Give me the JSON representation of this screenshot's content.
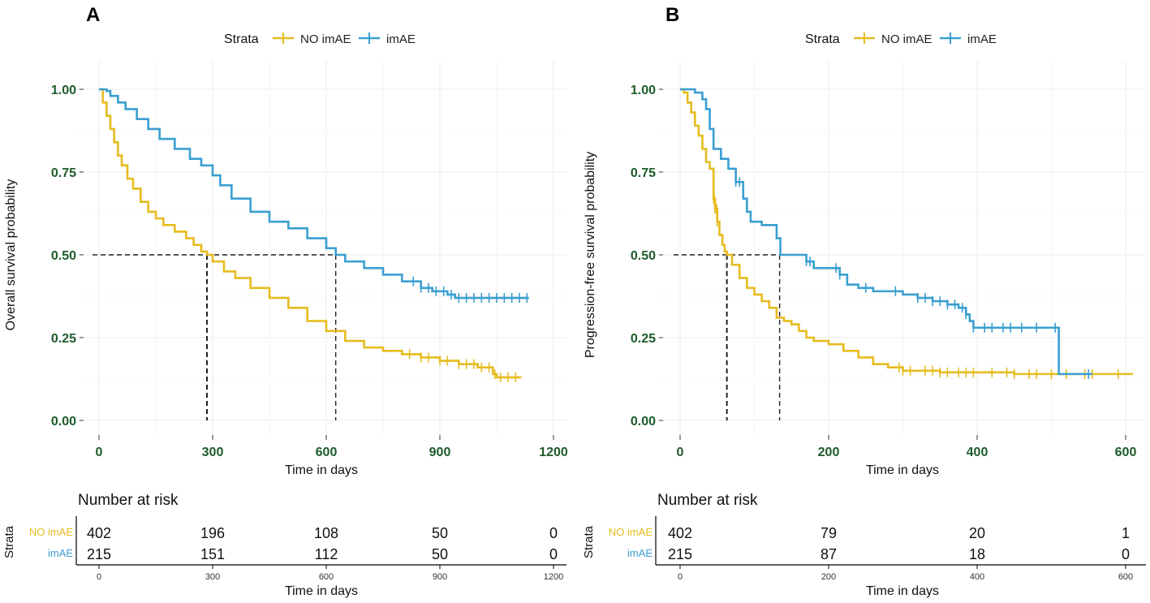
{
  "colors": {
    "no_imae": "#e6bc1f",
    "imae": "#3a9fd0",
    "tick_text": "#1d5b2a"
  },
  "chart_data": [
    {
      "id": "A",
      "type": "line",
      "panel_label": "A",
      "legend": {
        "title": "Strata",
        "entries": [
          "NO imAE",
          "imAE"
        ]
      },
      "ylabel": "Overall survival probability",
      "xlabel": "Time in days",
      "xlim": [
        0,
        1200
      ],
      "ylim": [
        0,
        1
      ],
      "x_ticks": [
        "0",
        "300",
        "600",
        "900",
        "1200"
      ],
      "y_ticks": [
        "0.00",
        "0.25",
        "0.50",
        "0.75",
        "1.00"
      ],
      "median_lines": [
        285,
        625
      ],
      "series": [
        {
          "name": "NO imAE",
          "points": [
            [
              0,
              1.0
            ],
            [
              10,
              0.96
            ],
            [
              20,
              0.92
            ],
            [
              30,
              0.88
            ],
            [
              40,
              0.84
            ],
            [
              50,
              0.8
            ],
            [
              60,
              0.77
            ],
            [
              75,
              0.73
            ],
            [
              90,
              0.7
            ],
            [
              110,
              0.66
            ],
            [
              130,
              0.63
            ],
            [
              150,
              0.61
            ],
            [
              170,
              0.59
            ],
            [
              200,
              0.57
            ],
            [
              230,
              0.55
            ],
            [
              250,
              0.53
            ],
            [
              270,
              0.51
            ],
            [
              285,
              0.5
            ],
            [
              300,
              0.48
            ],
            [
              330,
              0.45
            ],
            [
              360,
              0.43
            ],
            [
              400,
              0.4
            ],
            [
              450,
              0.37
            ],
            [
              500,
              0.34
            ],
            [
              550,
              0.3
            ],
            [
              600,
              0.27
            ],
            [
              650,
              0.24
            ],
            [
              700,
              0.22
            ],
            [
              750,
              0.21
            ],
            [
              800,
              0.2
            ],
            [
              850,
              0.19
            ],
            [
              900,
              0.18
            ],
            [
              950,
              0.17
            ],
            [
              1000,
              0.16
            ],
            [
              1040,
              0.14
            ],
            [
              1050,
              0.13
            ],
            [
              1115,
              0.13
            ]
          ],
          "censors": [
            820,
            850,
            870,
            900,
            920,
            950,
            970,
            990,
            1010,
            1030,
            1045,
            1060,
            1080,
            1100
          ]
        },
        {
          "name": "imAE",
          "points": [
            [
              0,
              1.0
            ],
            [
              20,
              0.995
            ],
            [
              30,
              0.98
            ],
            [
              50,
              0.96
            ],
            [
              70,
              0.94
            ],
            [
              100,
              0.91
            ],
            [
              130,
              0.88
            ],
            [
              160,
              0.85
            ],
            [
              200,
              0.82
            ],
            [
              240,
              0.79
            ],
            [
              270,
              0.77
            ],
            [
              300,
              0.74
            ],
            [
              320,
              0.71
            ],
            [
              350,
              0.67
            ],
            [
              400,
              0.63
            ],
            [
              450,
              0.6
            ],
            [
              500,
              0.58
            ],
            [
              550,
              0.55
            ],
            [
              600,
              0.52
            ],
            [
              625,
              0.5
            ],
            [
              650,
              0.48
            ],
            [
              700,
              0.46
            ],
            [
              750,
              0.44
            ],
            [
              800,
              0.42
            ],
            [
              850,
              0.4
            ],
            [
              880,
              0.39
            ],
            [
              900,
              0.39
            ],
            [
              920,
              0.38
            ],
            [
              940,
              0.37
            ],
            [
              1000,
              0.37
            ],
            [
              1135,
              0.37
            ]
          ],
          "censors": [
            830,
            850,
            870,
            890,
            910,
            930,
            950,
            970,
            990,
            1010,
            1030,
            1050,
            1070,
            1090,
            1110,
            1130
          ]
        }
      ],
      "risk_table": {
        "title": "Number at risk",
        "ytitle": "Strata",
        "xlabel": "Time in days",
        "x_ticks": [
          "0",
          "300",
          "600",
          "900",
          "1200"
        ],
        "rows": [
          {
            "strata": "NO imAE",
            "values": [
              "402",
              "196",
              "108",
              "50",
              "0"
            ]
          },
          {
            "strata": "imAE",
            "values": [
              "215",
              "151",
              "112",
              "50",
              "0"
            ]
          }
        ]
      }
    },
    {
      "id": "B",
      "type": "line",
      "panel_label": "B",
      "legend": {
        "title": "Strata",
        "entries": [
          "NO imAE",
          "imAE"
        ]
      },
      "ylabel": "Progression-free survival probability",
      "xlabel": "Time in days",
      "xlim": [
        0,
        600
      ],
      "ylim": [
        0,
        1
      ],
      "x_ticks": [
        "0",
        "200",
        "400",
        "600"
      ],
      "y_ticks": [
        "0.00",
        "0.25",
        "0.50",
        "0.75",
        "1.00"
      ],
      "median_lines": [
        63,
        134
      ],
      "series": [
        {
          "name": "NO imAE",
          "points": [
            [
              0,
              1.0
            ],
            [
              5,
              0.99
            ],
            [
              10,
              0.96
            ],
            [
              15,
              0.93
            ],
            [
              20,
              0.89
            ],
            [
              25,
              0.86
            ],
            [
              30,
              0.82
            ],
            [
              35,
              0.78
            ],
            [
              40,
              0.76
            ],
            [
              45,
              0.67
            ],
            [
              47,
              0.64
            ],
            [
              50,
              0.6
            ],
            [
              53,
              0.56
            ],
            [
              57,
              0.53
            ],
            [
              60,
              0.51
            ],
            [
              63,
              0.5
            ],
            [
              70,
              0.47
            ],
            [
              80,
              0.43
            ],
            [
              90,
              0.4
            ],
            [
              100,
              0.38
            ],
            [
              110,
              0.36
            ],
            [
              120,
              0.34
            ],
            [
              130,
              0.31
            ],
            [
              140,
              0.3
            ],
            [
              150,
              0.29
            ],
            [
              160,
              0.27
            ],
            [
              170,
              0.25
            ],
            [
              180,
              0.24
            ],
            [
              200,
              0.23
            ],
            [
              220,
              0.21
            ],
            [
              240,
              0.19
            ],
            [
              260,
              0.17
            ],
            [
              280,
              0.16
            ],
            [
              300,
              0.15
            ],
            [
              350,
              0.145
            ],
            [
              400,
              0.145
            ],
            [
              450,
              0.14
            ],
            [
              610,
              0.14
            ]
          ],
          "censors": [
            45,
            46,
            47,
            48,
            49,
            50,
            295,
            300,
            310,
            330,
            340,
            350,
            360,
            375,
            385,
            395,
            420,
            440,
            450,
            470,
            480,
            500,
            520,
            545,
            555,
            590
          ]
        },
        {
          "name": "imAE",
          "points": [
            [
              0,
              1.0
            ],
            [
              10,
              1.0
            ],
            [
              20,
              0.99
            ],
            [
              30,
              0.97
            ],
            [
              35,
              0.94
            ],
            [
              40,
              0.88
            ],
            [
              45,
              0.82
            ],
            [
              55,
              0.79
            ],
            [
              65,
              0.76
            ],
            [
              75,
              0.72
            ],
            [
              85,
              0.67
            ],
            [
              90,
              0.63
            ],
            [
              95,
              0.6
            ],
            [
              105,
              0.6
            ],
            [
              110,
              0.59
            ],
            [
              125,
              0.59
            ],
            [
              130,
              0.55
            ],
            [
              135,
              0.5
            ],
            [
              160,
              0.5
            ],
            [
              170,
              0.48
            ],
            [
              180,
              0.46
            ],
            [
              210,
              0.46
            ],
            [
              215,
              0.44
            ],
            [
              225,
              0.41
            ],
            [
              240,
              0.4
            ],
            [
              260,
              0.39
            ],
            [
              280,
              0.39
            ],
            [
              300,
              0.38
            ],
            [
              320,
              0.37
            ],
            [
              340,
              0.36
            ],
            [
              360,
              0.35
            ],
            [
              375,
              0.34
            ],
            [
              385,
              0.32
            ],
            [
              390,
              0.3
            ],
            [
              395,
              0.28
            ],
            [
              440,
              0.28
            ],
            [
              510,
              0.28
            ],
            [
              510,
              0.14
            ],
            [
              555,
              0.14
            ]
          ],
          "censors": [
            75,
            80,
            170,
            175,
            210,
            215,
            250,
            290,
            320,
            330,
            340,
            350,
            360,
            370,
            380,
            385,
            395,
            410,
            420,
            435,
            445,
            460,
            480,
            505,
            550
          ]
        }
      ],
      "risk_table": {
        "title": "Number at risk",
        "ytitle": "Strata",
        "xlabel": "Time in days",
        "x_ticks": [
          "0",
          "200",
          "400",
          "600"
        ],
        "rows": [
          {
            "strata": "NO imAE",
            "values": [
              "402",
              "79",
              "20",
              "1"
            ]
          },
          {
            "strata": "imAE",
            "values": [
              "215",
              "87",
              "18",
              "0"
            ]
          }
        ]
      }
    }
  ]
}
